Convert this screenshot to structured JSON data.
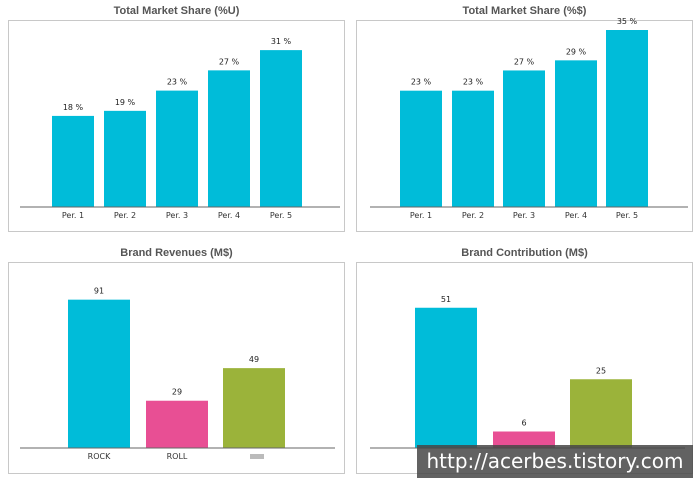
{
  "colors": {
    "cyan": "#00BCD9",
    "pink": "#E84F94",
    "green": "#9BB33A",
    "axis": "#666666"
  },
  "watermark": "http://acerbes.tistory.com",
  "chart_data": [
    {
      "type": "bar",
      "title": "Total Market Share (%U)",
      "categories": [
        "Per. 1",
        "Per. 2",
        "Per. 3",
        "Per. 4",
        "Per. 5"
      ],
      "values": [
        18,
        19,
        23,
        27,
        31
      ],
      "labels": [
        "18 %",
        "19 %",
        "23 %",
        "27 %",
        "31 %"
      ],
      "ylim": [
        0,
        33
      ],
      "colors": [
        "cyan",
        "cyan",
        "cyan",
        "cyan",
        "cyan"
      ]
    },
    {
      "type": "bar",
      "title": "Total Market Share (%$)",
      "categories": [
        "Per. 1",
        "Per. 2",
        "Per. 3",
        "Per. 4",
        "Per. 5"
      ],
      "values": [
        23,
        23,
        27,
        29,
        35
      ],
      "labels": [
        "23 %",
        "23 %",
        "27 %",
        "29 %",
        "35 %"
      ],
      "ylim": [
        0,
        35
      ],
      "colors": [
        "cyan",
        "cyan",
        "cyan",
        "cyan",
        "cyan"
      ]
    },
    {
      "type": "bar",
      "title": "Brand Revenues (M$)",
      "categories": [
        "ROCK",
        "ROLL",
        ""
      ],
      "values": [
        91,
        29,
        49
      ],
      "labels": [
        "91",
        "29",
        "49"
      ],
      "ylim": [
        0,
        100
      ],
      "colors": [
        "cyan",
        "pink",
        "green"
      ]
    },
    {
      "type": "bar",
      "title": "Brand Contribution (M$)",
      "categories": [
        "",
        "",
        ""
      ],
      "values": [
        51,
        6,
        25
      ],
      "labels": [
        "51",
        "6",
        "25"
      ],
      "ylim": [
        0,
        56
      ],
      "colors": [
        "cyan",
        "pink",
        "green"
      ]
    }
  ]
}
